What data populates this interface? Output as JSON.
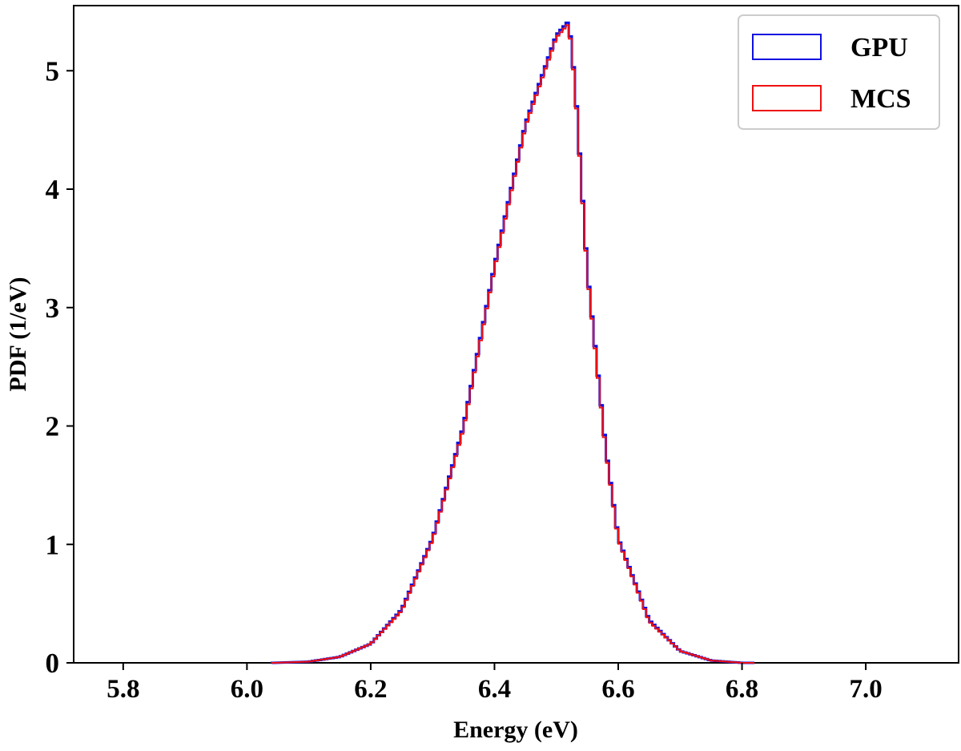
{
  "chart_data": {
    "type": "line",
    "title": "",
    "xlabel": "Energy (eV)",
    "ylabel": "PDF (1/eV)",
    "xlim": [
      5.72,
      7.15
    ],
    "ylim": [
      0,
      5.55
    ],
    "xticks": [
      5.8,
      6.0,
      6.2,
      6.4,
      6.6,
      6.8,
      7.0
    ],
    "xtick_labels": [
      "5.8",
      "6.0",
      "6.2",
      "6.4",
      "6.6",
      "6.8",
      "7.0"
    ],
    "yticks": [
      0,
      1,
      2,
      3,
      4,
      5
    ],
    "ytick_labels": [
      "0",
      "1",
      "2",
      "3",
      "4",
      "5"
    ],
    "grid": false,
    "legend_position": "top-right",
    "series": [
      {
        "name": "GPU",
        "color": "#1010e0",
        "style": "step",
        "x": [
          6.04,
          6.1,
          6.15,
          6.2,
          6.25,
          6.3,
          6.35,
          6.4,
          6.45,
          6.5,
          6.52,
          6.53,
          6.55,
          6.58,
          6.6,
          6.65,
          6.7,
          6.75,
          6.8,
          6.82
        ],
        "values": [
          0.0,
          0.01,
          0.05,
          0.16,
          0.45,
          1.05,
          2.0,
          3.35,
          4.55,
          5.3,
          5.42,
          4.9,
          3.3,
          1.8,
          1.05,
          0.36,
          0.1,
          0.02,
          0.0,
          0.0
        ]
      },
      {
        "name": "MCS",
        "color": "#ee1111",
        "style": "step",
        "x": [
          6.04,
          6.1,
          6.15,
          6.2,
          6.25,
          6.3,
          6.35,
          6.4,
          6.45,
          6.5,
          6.52,
          6.53,
          6.55,
          6.58,
          6.6,
          6.65,
          6.7,
          6.75,
          6.8,
          6.82
        ],
        "values": [
          0.0,
          0.01,
          0.05,
          0.16,
          0.44,
          1.04,
          1.98,
          3.33,
          4.53,
          5.28,
          5.4,
          4.88,
          3.28,
          1.78,
          1.04,
          0.35,
          0.1,
          0.02,
          0.0,
          0.0
        ]
      }
    ]
  }
}
